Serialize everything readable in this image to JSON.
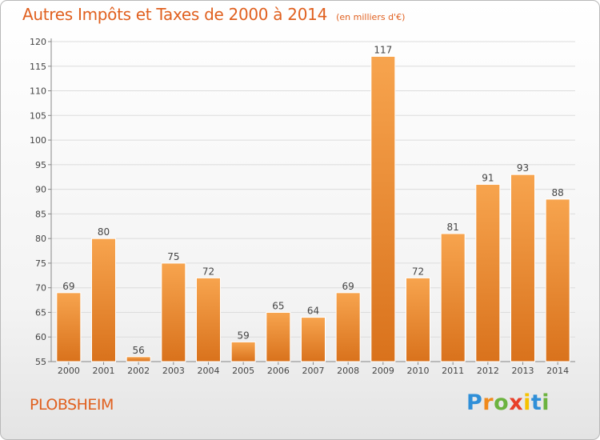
{
  "page": {
    "title": "Autres Impôts et Taxes de 2000 à 2014",
    "subtitle": "(en milliers d'€)",
    "commune": "PLOBSHEIM",
    "brand": "Proxiti"
  },
  "colors": {
    "accent": "#e0601f",
    "bar_light": "#f7a44e",
    "bar_dark": "#d9721c",
    "brand_letters": [
      "#2f8fd8",
      "#f08a1c",
      "#6cb33f",
      "#e8402a",
      "#f6c200",
      "#2f8fd8",
      "#6cb33f"
    ]
  },
  "chart_data": {
    "type": "bar",
    "title": "Autres Impôts et Taxes de 2000 à 2014",
    "subtitle": "(en milliers d'€)",
    "categories": [
      "2000",
      "2001",
      "2002",
      "2003",
      "2004",
      "2005",
      "2006",
      "2007",
      "2008",
      "2009",
      "2010",
      "2011",
      "2012",
      "2013",
      "2014"
    ],
    "values": [
      69,
      80,
      56,
      75,
      72,
      59,
      65,
      64,
      69,
      117,
      72,
      81,
      91,
      93,
      88
    ],
    "ylim": [
      55,
      120
    ],
    "yticks": [
      55,
      60,
      65,
      70,
      75,
      80,
      85,
      90,
      95,
      100,
      105,
      110,
      115,
      120
    ],
    "grid": true,
    "data_labels": true
  }
}
